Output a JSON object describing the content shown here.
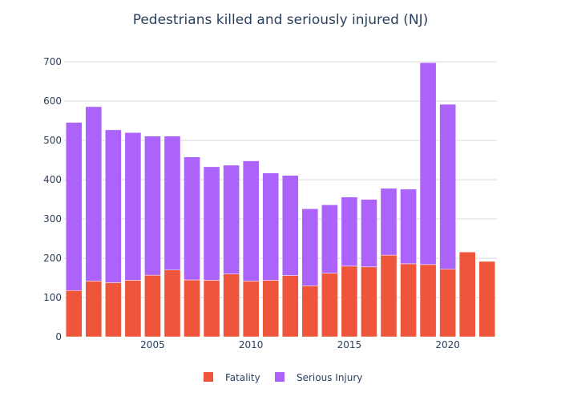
{
  "chart_data": {
    "type": "bar",
    "stacked": true,
    "title": "Pedestrians killed and seriously injured (NJ)",
    "xlabel": "",
    "ylabel": "",
    "x": [
      2001,
      2002,
      2003,
      2004,
      2005,
      2006,
      2007,
      2008,
      2009,
      2010,
      2011,
      2012,
      2013,
      2014,
      2015,
      2016,
      2017,
      2018,
      2019,
      2020,
      2021,
      2022
    ],
    "xticks": [
      2005,
      2010,
      2015,
      2020
    ],
    "xlim": [
      2000.5,
      2022.5
    ],
    "ylim": [
      0,
      700
    ],
    "yticks": [
      0,
      100,
      200,
      300,
      400,
      500,
      600,
      700
    ],
    "grid": true,
    "legend_position": "bottom",
    "series": [
      {
        "name": "Fatality",
        "color": "#ef553b",
        "values": [
          118,
          142,
          138,
          144,
          157,
          170,
          145,
          144,
          160,
          142,
          144,
          156,
          130,
          162,
          180,
          178,
          208,
          186,
          184,
          172,
          216,
          192
        ]
      },
      {
        "name": "Serious Injury",
        "color": "#ab63fa",
        "values": [
          428,
          444,
          389,
          376,
          354,
          341,
          313,
          289,
          277,
          306,
          273,
          255,
          196,
          174,
          176,
          172,
          170,
          190,
          514,
          420,
          0,
          0
        ]
      }
    ]
  }
}
